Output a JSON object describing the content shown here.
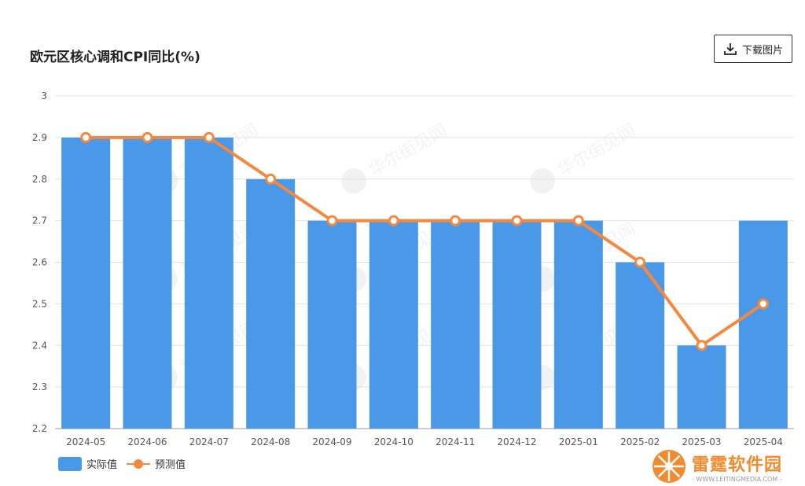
{
  "header": {
    "title": "欧元区核心调和CPI同比(%)",
    "download_label": "下载图片",
    "download_icon": "download-icon"
  },
  "watermark": {
    "text": "华尔街见闻"
  },
  "brand": {
    "name": "雷霆软件园",
    "url": "- WWW.LEITINGMEDIA.COM -"
  },
  "colors": {
    "bar": "#4a98e8",
    "line": "#f5883d",
    "grid": "#e2e2e2"
  },
  "chart_data": {
    "type": "bar",
    "categories": [
      "2024-05",
      "2024-06",
      "2024-07",
      "2024-08",
      "2024-09",
      "2024-10",
      "2024-11",
      "2024-12",
      "2025-01",
      "2025-02",
      "2025-03",
      "2025-04"
    ],
    "series": [
      {
        "name": "实际值",
        "type": "bar",
        "values": [
          2.9,
          2.9,
          2.9,
          2.8,
          2.7,
          2.7,
          2.7,
          2.7,
          2.7,
          2.6,
          2.4,
          2.7
        ]
      },
      {
        "name": "预测值",
        "type": "line",
        "values": [
          2.9,
          2.9,
          2.9,
          2.8,
          2.7,
          2.7,
          2.7,
          2.7,
          2.7,
          2.6,
          2.4,
          2.5
        ]
      }
    ],
    "yticks": [
      "2.2",
      "2.3",
      "2.4",
      "2.5",
      "2.6",
      "2.7",
      "2.8",
      "2.9",
      "3"
    ],
    "ylim": [
      2.2,
      3.0
    ],
    "grid": true,
    "legend": "bottom-left"
  }
}
